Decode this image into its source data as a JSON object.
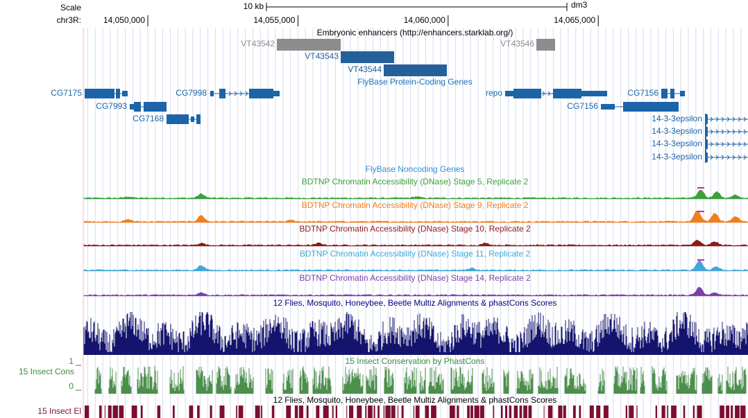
{
  "header": {
    "scale": "Scale",
    "scale_bar_label": "10 kb",
    "assembly": "dm3",
    "chrom": "chr3R:",
    "ruler_ticks": [
      {
        "value": 14050000,
        "label": "14,050,000"
      },
      {
        "value": 14055000,
        "label": "14,055,000"
      },
      {
        "value": 14060000,
        "label": "14,060,000"
      },
      {
        "value": 14065000,
        "label": "14,065,000"
      }
    ]
  },
  "tracks": {
    "enhancers": {
      "title": "Embryonic enhancers (http://enhancers.starklab.org/)",
      "features": [
        "VT43542",
        "VT43543",
        "VT43544",
        "VT43546"
      ]
    },
    "protein_coding": {
      "title": "FlyBase Protein-Coding Genes",
      "genes": [
        "CG7175",
        "CG7998",
        "repo",
        "CG7156",
        "CG7993",
        "CG7156",
        "CG7168",
        "14-3-3epsilon",
        "14-3-3epsilon",
        "14-3-3epsilon",
        "14-3-3epsilon"
      ]
    },
    "noncoding": {
      "title": "FlyBase Noncoding Genes"
    },
    "dnase": [
      "BDTNP Chromatin Accessibility (DNase) Stage 5, Replicate 2",
      "BDTNP Chromatin Accessibility (DNase) Stage 9, Replicate 2",
      "BDTNP Chromatin Accessibility (DNase) Stage 10, Replicate 2",
      "BDTNP Chromatin Accessibility (DNase) Stage 11, Replicate 2",
      "BDTNP Chromatin Accessibility (DNase) Stage 14, Replicate 2"
    ],
    "multiz": {
      "title": "12 Flies, Mosquito, Honeybee, Beetle Multiz Alignments & phastCons Scores"
    },
    "phastcons": {
      "title": "15 Insect Conservation by PhastCons",
      "short_label": "15 Insect Cons",
      "ylim": [
        0,
        1
      ]
    },
    "elements": {
      "title": "12 Flies, Mosquito, Honeybee, Beetle Multiz Alignments & phastCons Scores",
      "short_label": "15 Insect El"
    }
  }
}
